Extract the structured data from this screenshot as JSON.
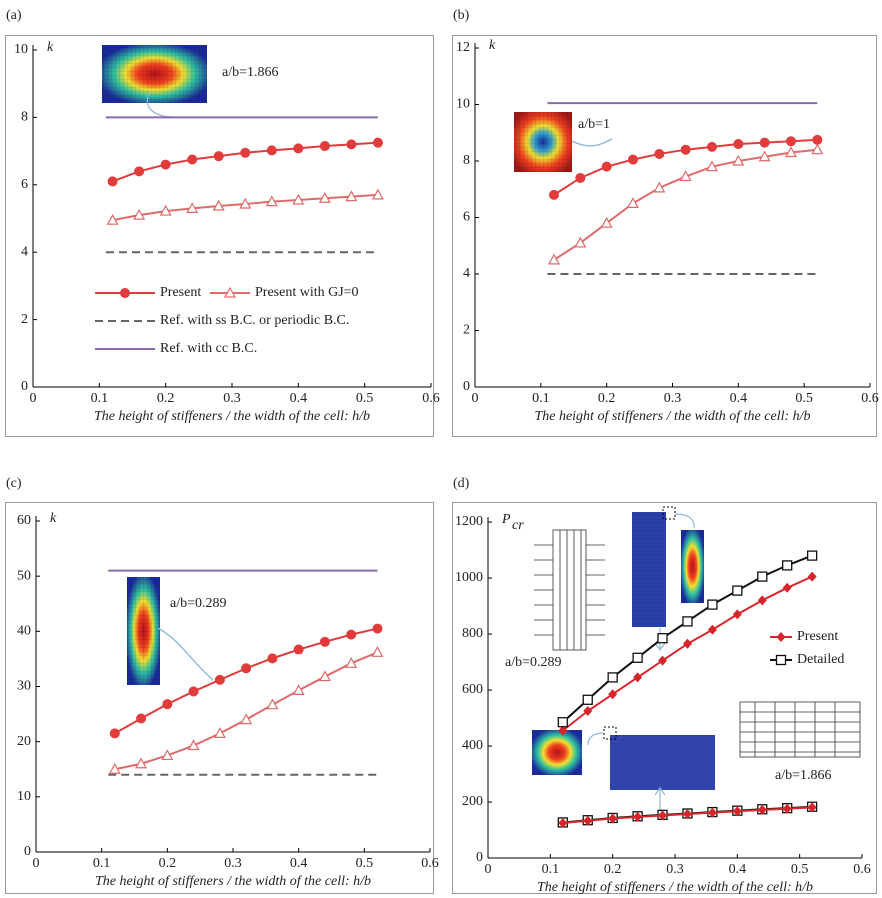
{
  "chart_data": [
    {
      "type": "line",
      "label": "(a)",
      "ylabel": "k",
      "xlabel": "The height of stiffeners / the width of the cell:  h/b",
      "annotations": [
        "a/b=1.866"
      ],
      "xlim": [
        0,
        0.6
      ],
      "xticks": [
        0,
        0.1,
        0.2,
        0.3,
        0.4,
        0.5,
        0.6
      ],
      "ylim": [
        0,
        10
      ],
      "yticks": [
        0,
        2,
        4,
        6,
        8,
        10
      ],
      "legend": true,
      "series": [
        {
          "name": "Present",
          "color": "#e23b3b",
          "marker": "circle",
          "x": [
            0.12,
            0.16,
            0.2,
            0.24,
            0.28,
            0.32,
            0.36,
            0.4,
            0.44,
            0.48,
            0.52
          ],
          "values": [
            6.1,
            6.4,
            6.6,
            6.75,
            6.85,
            6.95,
            7.02,
            7.08,
            7.15,
            7.2,
            7.25
          ]
        },
        {
          "name": "Present with GJ=0",
          "color": "#e06a6a",
          "marker": "triangle",
          "x": [
            0.12,
            0.16,
            0.2,
            0.24,
            0.28,
            0.32,
            0.36,
            0.4,
            0.44,
            0.48,
            0.52
          ],
          "values": [
            4.95,
            5.1,
            5.22,
            5.3,
            5.37,
            5.43,
            5.5,
            5.55,
            5.6,
            5.65,
            5.7
          ]
        },
        {
          "name": "Ref. with ss B.C. or periodic B.C.",
          "color": "#666666",
          "dash": true,
          "x": [
            0.11,
            0.52
          ],
          "values": [
            4,
            4
          ]
        },
        {
          "name": "Ref. with cc B.C.",
          "color": "#8b68ad",
          "x": [
            0.11,
            0.52
          ],
          "values": [
            8,
            8
          ]
        }
      ]
    },
    {
      "type": "line",
      "label": "(b)",
      "ylabel": "k",
      "xlabel": "The height of stiffeners / the width of the cell:  h/b",
      "annotations": [
        "a/b=1"
      ],
      "xlim": [
        0,
        0.6
      ],
      "xticks": [
        0,
        0.1,
        0.2,
        0.3,
        0.4,
        0.5,
        0.6
      ],
      "ylim": [
        0,
        12
      ],
      "yticks": [
        0,
        2,
        4,
        6,
        8,
        10,
        12
      ],
      "legend": false,
      "series": [
        {
          "name": "Present",
          "color": "#e23b3b",
          "marker": "circle",
          "x": [
            0.12,
            0.16,
            0.2,
            0.24,
            0.28,
            0.32,
            0.36,
            0.4,
            0.44,
            0.48,
            0.52
          ],
          "values": [
            6.8,
            7.4,
            7.8,
            8.05,
            8.25,
            8.4,
            8.5,
            8.6,
            8.65,
            8.7,
            8.75
          ]
        },
        {
          "name": "Present with GJ=0",
          "color": "#e06a6a",
          "marker": "triangle",
          "x": [
            0.12,
            0.16,
            0.2,
            0.24,
            0.28,
            0.32,
            0.36,
            0.4,
            0.44,
            0.48,
            0.52
          ],
          "values": [
            4.5,
            5.1,
            5.8,
            6.5,
            7.05,
            7.45,
            7.8,
            8.0,
            8.15,
            8.3,
            8.4
          ]
        },
        {
          "name": "Ref. with ss B.C. or periodic B.C.",
          "color": "#666666",
          "dash": true,
          "x": [
            0.11,
            0.52
          ],
          "values": [
            4,
            4
          ]
        },
        {
          "name": "Ref. with cc B.C.",
          "color": "#8b68ad",
          "x": [
            0.11,
            0.52
          ],
          "values": [
            10.05,
            10.05
          ]
        }
      ]
    },
    {
      "type": "line",
      "label": "(c)",
      "ylabel": "k",
      "xlabel": "The height of stiffeners / the width of the cell:  h/b",
      "annotations": [
        "a/b=0.289"
      ],
      "xlim": [
        0,
        0.6
      ],
      "xticks": [
        0,
        0.1,
        0.2,
        0.3,
        0.4,
        0.5,
        0.6
      ],
      "ylim": [
        0,
        60
      ],
      "yticks": [
        0,
        10,
        20,
        30,
        40,
        50,
        60
      ],
      "legend": false,
      "series": [
        {
          "name": "Present",
          "color": "#e23b3b",
          "marker": "circle",
          "x": [
            0.12,
            0.16,
            0.2,
            0.24,
            0.28,
            0.32,
            0.36,
            0.4,
            0.44,
            0.48,
            0.52
          ],
          "values": [
            21.5,
            24.2,
            26.8,
            29.1,
            31.2,
            33.3,
            35.1,
            36.7,
            38.1,
            39.4,
            40.5
          ]
        },
        {
          "name": "Present with GJ=0",
          "color": "#e06a6a",
          "marker": "triangle",
          "x": [
            0.12,
            0.16,
            0.2,
            0.24,
            0.28,
            0.32,
            0.36,
            0.4,
            0.44,
            0.48,
            0.52
          ],
          "values": [
            15,
            16,
            17.5,
            19.3,
            21.5,
            24,
            26.7,
            29.3,
            31.8,
            34.2,
            36.2
          ]
        },
        {
          "name": "Ref. with ss B.C. or periodic B.C.",
          "color": "#666666",
          "dash": true,
          "x": [
            0.11,
            0.52
          ],
          "values": [
            14,
            14
          ]
        },
        {
          "name": "Ref. with cc B.C.",
          "color": "#8b68ad",
          "x": [
            0.11,
            0.52
          ],
          "values": [
            51,
            51
          ]
        }
      ]
    },
    {
      "type": "line",
      "label": "(d)",
      "ylabel": "P",
      "ylabel_sub": "cr",
      "xlabel": "The height of stiffeners / the width of the cell:  h/b",
      "annotations": [
        "a/b=0.289",
        "a/b=1.866"
      ],
      "xlim": [
        0,
        0.6
      ],
      "xticks": [
        0,
        0.1,
        0.2,
        0.3,
        0.4,
        0.5,
        0.6
      ],
      "ylim": [
        0,
        1200
      ],
      "yticks": [
        0,
        200,
        400,
        600,
        800,
        1000,
        1200
      ],
      "legend": true,
      "series": [
        {
          "name": "Present",
          "color": "#d7262b",
          "marker": "diamond",
          "x": [
            0.12,
            0.16,
            0.2,
            0.24,
            0.28,
            0.32,
            0.36,
            0.4,
            0.44,
            0.48,
            0.52
          ],
          "values": [
            455,
            525,
            585,
            645,
            705,
            765,
            815,
            870,
            920,
            965,
            1005
          ]
        },
        {
          "name": "Detailed",
          "color": "#111111",
          "marker": "square",
          "x": [
            0.12,
            0.16,
            0.2,
            0.24,
            0.28,
            0.32,
            0.36,
            0.4,
            0.44,
            0.48,
            0.52
          ],
          "values": [
            485,
            565,
            645,
            715,
            785,
            845,
            905,
            955,
            1005,
            1045,
            1080
          ]
        },
        {
          "name": "Detailed",
          "color": "#111111",
          "marker": "square",
          "x": [
            0.12,
            0.16,
            0.2,
            0.24,
            0.28,
            0.32,
            0.36,
            0.4,
            0.44,
            0.48,
            0.52
          ],
          "values": [
            127,
            135,
            143,
            149,
            154,
            159,
            164,
            169,
            174,
            178,
            183
          ]
        },
        {
          "name": "Present",
          "color": "#d7262b",
          "marker": "diamond",
          "x": [
            0.12,
            0.16,
            0.2,
            0.24,
            0.28,
            0.32,
            0.36,
            0.4,
            0.44,
            0.48,
            0.52
          ],
          "values": [
            125,
            133,
            141,
            147,
            152,
            157,
            162,
            167,
            172,
            176,
            181
          ]
        }
      ]
    }
  ]
}
